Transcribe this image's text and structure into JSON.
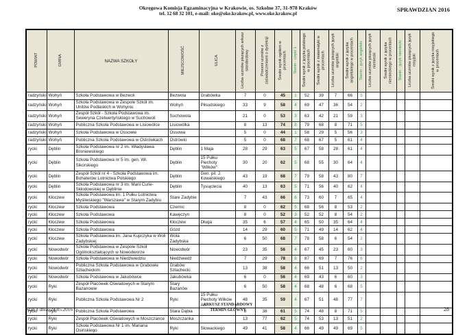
{
  "colors": {
    "accent_green": "#2e9e47",
    "header_beige": "#e9e5d5",
    "stanin_cell_bg": "#edf4e7"
  },
  "page_header": {
    "org_line1": "Okręgowa Komisja Egzaminacyjna w Krakowie, os. Szkolne 37, 31-978 Kraków",
    "org_line2": "tel. 12 68 32 101, e-mail: oke@oke.krakow.pl, www.oke.krakow.pl",
    "exam_title": "SPRAWDZIAN 2016"
  },
  "table": {
    "columns": [
      {
        "key": "powiat",
        "label": "POWIAT",
        "vertical": true,
        "width": 30,
        "align": "al",
        "cls": ""
      },
      {
        "key": "gmina",
        "label": "GMINA",
        "vertical": true,
        "width": 40,
        "align": "al",
        "cls": ""
      },
      {
        "key": "nazwa_szkoly",
        "label": "NAZWA SZKOŁY",
        "vertical": false,
        "width": 137,
        "align": "al",
        "cls": ""
      },
      {
        "key": "miejscowosc",
        "label": "MIEJSCOWOŚĆ",
        "vertical": true,
        "width": 45,
        "align": "al",
        "cls": ""
      },
      {
        "key": "ulica",
        "label": "ULICA",
        "vertical": true,
        "width": 53,
        "align": "al",
        "cls": ""
      },
      {
        "key": "liczba_arkusz_standardowy",
        "label": "Liczba uczniów piszących arkusz standardowy",
        "vertical": true,
        "width": 29,
        "align": "ac",
        "cls": ""
      },
      {
        "key": "procent_dysleksja",
        "label": "Procent uczniów z zaświadczeniami o dysleksji",
        "vertical": true,
        "width": 28,
        "align": "ac",
        "cls": ""
      },
      {
        "key": "sredni_wynik_ogolem",
        "label": "Średni wynik ogółem w procentach",
        "vertical": true,
        "width": 25,
        "align": "ac",
        "cls": "beige"
      },
      {
        "key": "stanin_czesc1",
        "label": "Stanin - część 1",
        "vertical": true,
        "width": 12,
        "align": "ac",
        "cls": "stanin-bg",
        "green": true
      },
      {
        "key": "sredni_jezyk_polski",
        "label": "Średni wynik z języka polskiego w procentach",
        "vertical": true,
        "width": 21,
        "align": "ac",
        "cls": ""
      },
      {
        "key": "sredni_matematyka",
        "label": "Średni wynik z matematyki w procentach",
        "vertical": true,
        "width": 21,
        "align": "ac",
        "cls": ""
      },
      {
        "key": "liczba_angielski",
        "label": "Liczba uczniów piszących język angielski",
        "vertical": true,
        "width": 21,
        "align": "ac",
        "cls": ""
      },
      {
        "key": "sredni_angielski",
        "label": "Średni wynik z języka angielskiego w procentach",
        "vertical": true,
        "width": 21,
        "align": "ac",
        "cls": ""
      },
      {
        "key": "stanin_angielski",
        "label": "Stanin - język angielski",
        "vertical": true,
        "width": 12,
        "align": "ac",
        "cls": "stanin",
        "green": true
      },
      {
        "key": "liczba_niemiecki",
        "label": "Liczba uczniów piszących język niemiecki",
        "vertical": true,
        "width": 21,
        "align": "ac",
        "cls": ""
      },
      {
        "key": "sredni_niemiecki",
        "label": "Średni wynik z języka niemieckiego w procentach",
        "vertical": true,
        "width": 24,
        "align": "ac",
        "cls": ""
      },
      {
        "key": "stanin_niemiecki",
        "label": "Stanin - język niemiecki",
        "vertical": true,
        "width": 12,
        "align": "ac",
        "cls": "stanin",
        "green": true
      },
      {
        "key": "liczba_rosyjski",
        "label": "Liczba uczniów piszących język rosyjski",
        "vertical": true,
        "width": 22,
        "align": "ac",
        "cls": ""
      },
      {
        "key": "sredni_rosyjski",
        "label": "Średni wynik z języka rosyjskiego w procentach",
        "vertical": true,
        "width": 48,
        "align": "ac",
        "cls": ""
      }
    ],
    "rows": [
      [
        "radzyński",
        "Wohyń",
        "Szkoła Podstawowa w Bezwoli",
        "Bezwola",
        "Grabówka",
        "7",
        "0",
        "45",
        "1",
        "52",
        "39",
        "7",
        "66",
        "5",
        "",
        "",
        "",
        "",
        ""
      ],
      [
        "radzyński",
        "Wohyń",
        "Szkoła Podstawowa w Zespole Szkół im. Unitów Podlaskich w Wohyniu",
        "Wohyń",
        "Piłsudskiego",
        "33",
        "9",
        "58",
        "4",
        "69",
        "47",
        "36",
        "54",
        "2",
        "",
        "",
        "",
        "",
        ""
      ],
      [
        "radzyński",
        "Wohyń",
        "Zespół Szkół - Szkoła Podstawowa im. Seweryna Czetwertyńskiego w Suchowoli",
        "Suchowola",
        "",
        "21",
        "0",
        "53",
        "3",
        "63",
        "42",
        "21",
        "59",
        "3",
        "",
        "",
        "",
        "",
        ""
      ],
      [
        "radzyński",
        "Wohyń",
        "Publiczna Szkoła Podstawowa w Lisiowólce",
        "Lisiowólka",
        "",
        "8",
        "13",
        "74",
        "8",
        "79",
        "68",
        "8",
        "71",
        "5",
        "",
        "",
        "",
        "",
        ""
      ],
      [
        "radzyński",
        "Wohyń",
        "Szkoła Podstawowa w Ossowie",
        "Ossowa",
        "",
        "5",
        "0",
        "44",
        "1",
        "58",
        "29",
        "5",
        "56",
        "3",
        "",
        "",
        "",
        "",
        ""
      ],
      [
        "radzyński",
        "Wohyń",
        "Publiczna Szkoła Podstawowa w Ostrówkach",
        "Ostrówki",
        "",
        "5",
        "0",
        "68",
        "7",
        "68",
        "67",
        "5",
        "61",
        "4",
        "",
        "",
        "",
        "",
        ""
      ],
      [
        "rycki",
        "Dęblin",
        "Szkoła Podstawowa nr 2 im. Władysława Broniewskiego",
        "Dęblin",
        "1 Maja",
        "28",
        "29",
        "63",
        "5",
        "67",
        "58",
        "28",
        "61",
        "4",
        "",
        "",
        "",
        "",
        ""
      ],
      [
        "rycki",
        "Dęblin",
        "Szkoła Podstawowa nr 5 im. gen. Wł. Sikorskiego",
        "Dęblin",
        "15 Pułku Piechoty \"Wilków\"",
        "30",
        "20",
        "62",
        "5",
        "68",
        "55",
        "30",
        "64",
        "4",
        "",
        "",
        "",
        "",
        ""
      ],
      [
        "rycki",
        "Dęblin",
        "Zespół Szkół nr 4 - Szkoła Podstawowa im. Bohaterów Lotnictwa Polskiego",
        "Dęblin",
        "Gen. pil. J. Kowalskiego",
        "43",
        "19",
        "68",
        "7",
        "79",
        "58",
        "43",
        "80",
        "7",
        "",
        "",
        "",
        "",
        ""
      ],
      [
        "rycki",
        "Dęblin",
        "Szkoła Podstawowa nr 3 im. Marii Curie-Skłodowskiej w Dęblinie",
        "Dęblin",
        "Tysiąclecia",
        "40",
        "13",
        "63",
        "5",
        "71",
        "56",
        "40",
        "62",
        "4",
        "",
        "",
        "",
        "",
        ""
      ],
      [
        "rycki",
        "Kłoczew",
        "Szkoła Podstawowa im. 1 Pułku Lotnictwa Myśliwskiego \"Warszawa\" w Starym Zadybiu",
        "Stare Zadybie",
        "",
        "7",
        "43",
        "66",
        "6",
        "73",
        "60",
        "7",
        "65",
        "4",
        "",
        "",
        "",
        "",
        ""
      ],
      [
        "rycki",
        "Kłoczew",
        "Szkoła Podstawowa",
        "Czernic",
        "",
        "8",
        "0",
        "62",
        "5",
        "68",
        "56",
        "8",
        "53",
        "2",
        "",
        "",
        "",
        "",
        ""
      ],
      [
        "rycki",
        "Kłoczew",
        "Szkoła Podstawowa",
        "Kawęczyn",
        "",
        "8",
        "0",
        "52",
        "3",
        "52",
        "52",
        "8",
        "54",
        "2",
        "",
        "",
        "",
        "",
        ""
      ],
      [
        "rycki",
        "Kłoczew",
        "Szkoła Podstawowa",
        "Kłoczew",
        "Długa",
        "35",
        "6",
        "57",
        "4",
        "65",
        "50",
        "35",
        "64",
        "4",
        "",
        "",
        "",
        "",
        ""
      ],
      [
        "rycki",
        "Kłoczew",
        "Szkoła Podstawowa",
        "Gózd",
        "",
        "14",
        "29",
        "60",
        "5",
        "71",
        "49",
        "14",
        "62",
        "4",
        "",
        "",
        "",
        "",
        ""
      ],
      [
        "rycki",
        "Kłoczew",
        "Szkoła Podstawowa im. Jana Kupczyka w Woli Zadybskiej",
        "Wola Zadybska",
        "",
        "6",
        "50",
        "68",
        "7",
        "78",
        "58",
        "6",
        "54",
        "2",
        "",
        "",
        "",
        "",
        ""
      ],
      [
        "rycki",
        "Nowodwór",
        "Szkoła Podstawowa w Zespole Szkół Ogólnokształcących w Nowodworze",
        "Nowodwór",
        "",
        "23",
        "35",
        "56",
        "4",
        "67",
        "45",
        "23",
        "60",
        "3",
        "",
        "",
        "",
        "",
        ""
      ],
      [
        "rycki",
        "Nowodwór",
        "Szkoła Podstawowa w Niedźwiedziu",
        "Niedźwiedź",
        "",
        "7",
        "29",
        "78",
        "8",
        "87",
        "69",
        "7",
        "76",
        "6",
        "",
        "",
        "",
        "",
        ""
      ],
      [
        "rycki",
        "Nowodwór",
        "Publiczna Szkoła Podstawowa w Grabowie Szlacheckim",
        "Grabów Szlachecki",
        "",
        "13",
        "38",
        "58",
        "4",
        "66",
        "51",
        "13",
        "50",
        "2",
        "",
        "",
        "",
        "",
        ""
      ],
      [
        "rycki",
        "Nowodwór",
        "Szkoła Podstawowa w Jakubówce",
        "Jakubówka",
        "",
        "6",
        "0",
        "56",
        "4",
        "69",
        "43",
        "6",
        "60",
        "3",
        "",
        "",
        "",
        "",
        ""
      ],
      [
        "rycki",
        "Ryki",
        "Zespół Placówek Oświatowych w Starym Bazanowie",
        "Stary Bazanów",
        "",
        "6",
        "50",
        "58",
        "4",
        "68",
        "48",
        "6",
        "68",
        "5",
        "",
        "",
        "",
        "",
        ""
      ],
      [
        "rycki",
        "Ryki",
        "Publiczna Szkoła Podstawowa Nr 2",
        "Ryki",
        "15 Pułku Piechoty Wilków AK",
        "48",
        "35",
        "59",
        "4",
        "67",
        "51",
        "48",
        "77",
        "7",
        "",
        "",
        "",
        "",
        ""
      ],
      [
        "rycki",
        "Ryki",
        "Publiczna Szkoła Podstawowa",
        "Stara Dąbia",
        "",
        "8",
        "38",
        "61",
        "5",
        "74",
        "48",
        "8",
        "71",
        "5",
        "",
        "",
        "",
        "",
        ""
      ],
      [
        "rycki",
        "Ryki",
        "Zespół Placówek Oświatowych w Moszczance",
        "Moszczanka",
        "",
        "13",
        "77",
        "62",
        "5",
        "74",
        "53",
        "13",
        "51",
        "2",
        "",
        "",
        "",
        "",
        ""
      ],
      [
        "rycki",
        "Ryki",
        "Szkoła Podstawowa Nr 1 im. Mariana Osińskiego",
        "Ryki",
        "Słowackiego",
        "49",
        "41",
        "58",
        "4",
        "66",
        "49",
        "49",
        "69",
        "5",
        "",
        "",
        "",
        "",
        ""
      ]
    ]
  },
  "footer": {
    "left": "Stan z dnia: 24.05.2016 r.",
    "center_line1": "ARKUSZ STANDARDOWY",
    "center_line2": "TERMIN GŁÓWNY",
    "page_number": "28"
  }
}
